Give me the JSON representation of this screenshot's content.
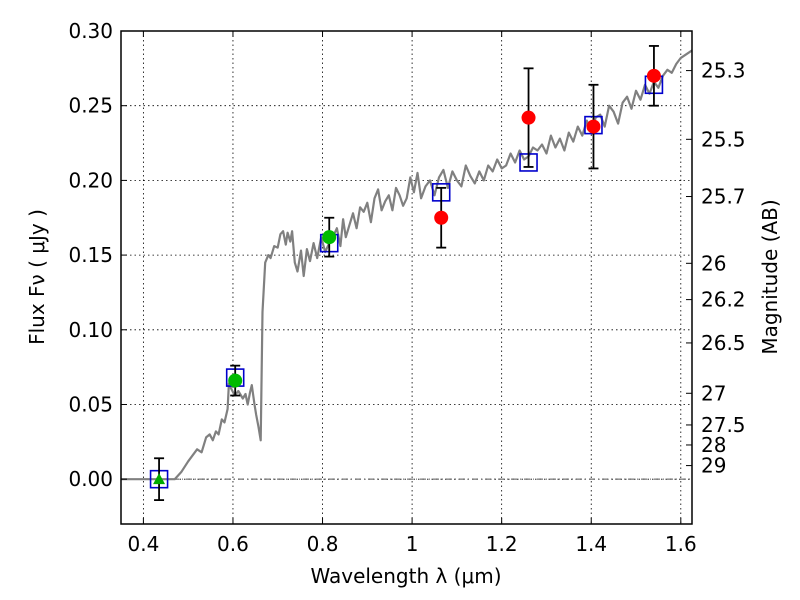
{
  "chart_data": {
    "type": "scatter",
    "xlabel": "Wavelength  λ (μm)",
    "ylabel": "Flux  Fν  ( μJy )",
    "ylabel_right": "Magnitude (AB)",
    "xlim": [
      0.35,
      1.625
    ],
    "ylim": [
      -0.03,
      0.3
    ],
    "grid": true,
    "x_ticks": [
      0.4,
      0.6,
      0.8,
      1.0,
      1.2,
      1.4,
      1.6
    ],
    "x_tick_labels": [
      "0.4",
      "0.6",
      "0.8",
      "1",
      "1.2",
      "1.4",
      "1.6"
    ],
    "y_ticks": [
      0.0,
      0.05,
      0.1,
      0.15,
      0.2,
      0.25,
      0.3
    ],
    "y_tick_labels": [
      "0.00",
      "0.05",
      "0.10",
      "0.15",
      "0.20",
      "0.25",
      "0.30"
    ],
    "right_axis": {
      "labels": [
        "25.3",
        "25.5",
        "25.7",
        "26",
        "26.2",
        "26.5",
        "27",
        "27.5",
        "28",
        "29"
      ],
      "flux_positions": [
        0.2735,
        0.2275,
        0.1892,
        0.1445,
        0.1202,
        0.0912,
        0.0575,
        0.0363,
        0.0229,
        0.0091
      ]
    },
    "series": [
      {
        "marker": "line",
        "color": "#808080",
        "x": [
          0.35,
          0.47,
          0.485,
          0.5,
          0.52,
          0.53,
          0.54,
          0.548,
          0.555,
          0.562,
          0.568,
          0.575,
          0.581,
          0.588,
          0.591,
          0.597,
          0.604,
          0.612,
          0.622,
          0.628,
          0.633,
          0.638,
          0.642,
          0.648,
          0.652,
          0.657,
          0.662,
          0.666,
          0.672,
          0.679,
          0.684,
          0.692,
          0.7,
          0.706,
          0.712,
          0.718,
          0.722,
          0.728,
          0.732,
          0.738,
          0.744,
          0.752,
          0.758,
          0.765,
          0.772,
          0.78,
          0.788,
          0.797,
          0.806,
          0.815,
          0.823,
          0.832,
          0.84,
          0.846,
          0.852,
          0.86,
          0.868,
          0.876,
          0.884,
          0.892,
          0.9,
          0.908,
          0.916,
          0.924,
          0.932,
          0.94,
          0.948,
          0.956,
          0.964,
          0.972,
          0.98,
          0.988,
          0.996,
          1.004,
          1.012,
          1.02,
          1.03,
          1.04,
          1.05,
          1.06,
          1.07,
          1.08,
          1.09,
          1.1,
          1.11,
          1.12,
          1.13,
          1.14,
          1.15,
          1.16,
          1.17,
          1.18,
          1.19,
          1.2,
          1.21,
          1.22,
          1.23,
          1.24,
          1.25,
          1.26,
          1.27,
          1.28,
          1.29,
          1.3,
          1.31,
          1.32,
          1.33,
          1.34,
          1.35,
          1.36,
          1.37,
          1.38,
          1.39,
          1.4,
          1.41,
          1.42,
          1.43,
          1.44,
          1.45,
          1.46,
          1.47,
          1.48,
          1.49,
          1.5,
          1.51,
          1.52,
          1.53,
          1.54,
          1.55,
          1.56,
          1.57,
          1.58,
          1.59,
          1.6,
          1.61,
          1.625
        ],
        "y": [
          0.0,
          0.0,
          0.005,
          0.012,
          0.02,
          0.018,
          0.028,
          0.03,
          0.026,
          0.032,
          0.03,
          0.04,
          0.038,
          0.047,
          0.064,
          0.06,
          0.056,
          0.059,
          0.054,
          0.057,
          0.05,
          0.058,
          0.063,
          0.05,
          0.043,
          0.035,
          0.026,
          0.112,
          0.145,
          0.15,
          0.148,
          0.156,
          0.155,
          0.164,
          0.166,
          0.157,
          0.165,
          0.159,
          0.166,
          0.145,
          0.139,
          0.153,
          0.136,
          0.154,
          0.146,
          0.158,
          0.148,
          0.162,
          0.152,
          0.158,
          0.162,
          0.168,
          0.156,
          0.174,
          0.162,
          0.17,
          0.178,
          0.168,
          0.182,
          0.179,
          0.185,
          0.172,
          0.188,
          0.194,
          0.18,
          0.186,
          0.19,
          0.18,
          0.195,
          0.19,
          0.183,
          0.188,
          0.202,
          0.192,
          0.205,
          0.188,
          0.196,
          0.2,
          0.19,
          0.202,
          0.207,
          0.195,
          0.206,
          0.2,
          0.196,
          0.21,
          0.203,
          0.198,
          0.206,
          0.2,
          0.21,
          0.206,
          0.214,
          0.208,
          0.21,
          0.218,
          0.212,
          0.22,
          0.214,
          0.216,
          0.222,
          0.22,
          0.224,
          0.218,
          0.23,
          0.222,
          0.228,
          0.22,
          0.232,
          0.226,
          0.236,
          0.23,
          0.24,
          0.232,
          0.242,
          0.244,
          0.236,
          0.25,
          0.246,
          0.238,
          0.252,
          0.256,
          0.248,
          0.26,
          0.254,
          0.264,
          0.258,
          0.266,
          0.262,
          0.27,
          0.274,
          0.272,
          0.278,
          0.282,
          0.284,
          0.287
        ]
      },
      {
        "marker": "open-square",
        "color": "#0000cc",
        "x": [
          0.435,
          0.605,
          0.815,
          1.065,
          1.26,
          1.405,
          1.54
        ],
        "y": [
          0.0,
          0.068,
          0.158,
          0.192,
          0.212,
          0.237,
          0.264
        ]
      },
      {
        "marker": "triangle",
        "color": "#00aa00",
        "x": [
          0.435
        ],
        "y": [
          0.0
        ],
        "yerr": [
          0.014
        ]
      },
      {
        "marker": "circle",
        "color": "#00bb00",
        "x": [
          0.605,
          0.815
        ],
        "y": [
          0.066,
          0.162
        ],
        "yerr": [
          0.01,
          0.013
        ]
      },
      {
        "marker": "circle",
        "color": "#ff0000",
        "x": [
          1.065,
          1.26,
          1.405,
          1.54
        ],
        "y": [
          0.175,
          0.242,
          0.236,
          0.27
        ],
        "yerr": [
          0.02,
          0.033,
          0.028,
          0.02
        ]
      }
    ]
  }
}
